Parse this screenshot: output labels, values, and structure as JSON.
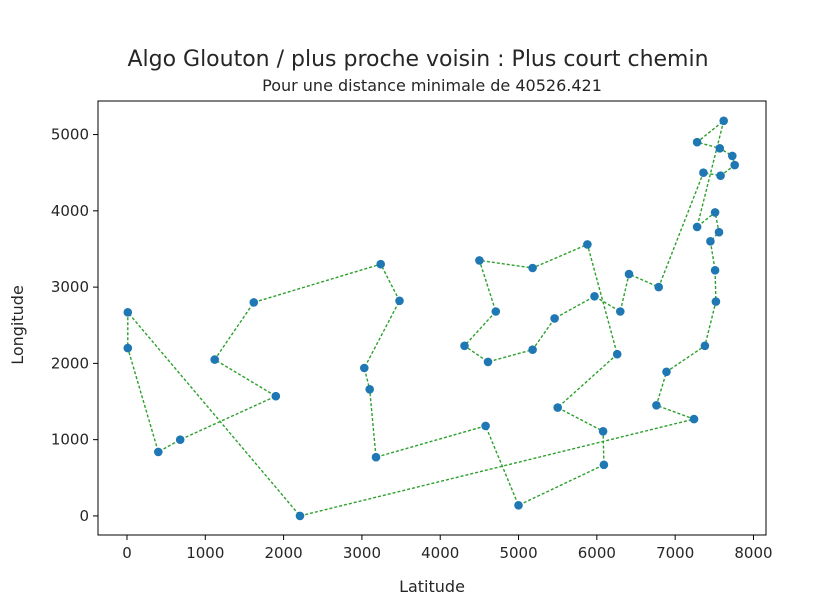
{
  "chart_data": {
    "type": "line",
    "title": "Algo Glouton / plus proche voisin : Plus court chemin",
    "subtitle": "Pour une distance minimale de 40526.421",
    "xlabel": "Latitude",
    "ylabel": "Longitude",
    "xlim": [
      -370,
      8160
    ],
    "ylim": [
      -250,
      5440
    ],
    "xticks": [
      0,
      1000,
      2000,
      3000,
      4000,
      5000,
      6000,
      7000,
      8000
    ],
    "yticks": [
      0,
      1000,
      2000,
      3000,
      4000,
      5000
    ],
    "grid": false,
    "colors": {
      "line": "#2ca02c",
      "marker": "#1f77b4",
      "axes": "#000000"
    },
    "series": [
      {
        "points": [
          [
            10,
            2670
          ],
          [
            10,
            2200
          ],
          [
            400,
            840
          ],
          [
            680,
            1000
          ],
          [
            1900,
            1570
          ],
          [
            1120,
            2050
          ],
          [
            1620,
            2800
          ],
          [
            3240,
            3300
          ],
          [
            3480,
            2820
          ],
          [
            3030,
            1940
          ],
          [
            3100,
            1660
          ],
          [
            3180,
            770
          ],
          [
            4580,
            1180
          ],
          [
            5000,
            140
          ],
          [
            6090,
            670
          ],
          [
            6080,
            1110
          ],
          [
            5500,
            1420
          ],
          [
            6260,
            2120
          ],
          [
            5880,
            3560
          ],
          [
            5180,
            3250
          ],
          [
            4500,
            3350
          ],
          [
            4710,
            2680
          ],
          [
            4310,
            2230
          ],
          [
            4610,
            2020
          ],
          [
            5180,
            2180
          ],
          [
            5460,
            2590
          ],
          [
            5970,
            2880
          ],
          [
            6300,
            2680
          ],
          [
            6410,
            3170
          ],
          [
            6790,
            3000
          ],
          [
            7360,
            4500
          ],
          [
            7580,
            4460
          ],
          [
            7760,
            4600
          ],
          [
            7730,
            4720
          ],
          [
            7570,
            4820
          ],
          [
            7280,
            4900
          ],
          [
            7620,
            5180
          ],
          [
            7280,
            3790
          ],
          [
            7510,
            3980
          ],
          [
            7560,
            3720
          ],
          [
            7450,
            3600
          ],
          [
            7510,
            3220
          ],
          [
            7520,
            2810
          ],
          [
            7380,
            2230
          ],
          [
            6890,
            1890
          ],
          [
            6760,
            1450
          ],
          [
            7240,
            1270
          ],
          [
            2210,
            0
          ],
          [
            10,
            2670
          ]
        ]
      }
    ]
  }
}
